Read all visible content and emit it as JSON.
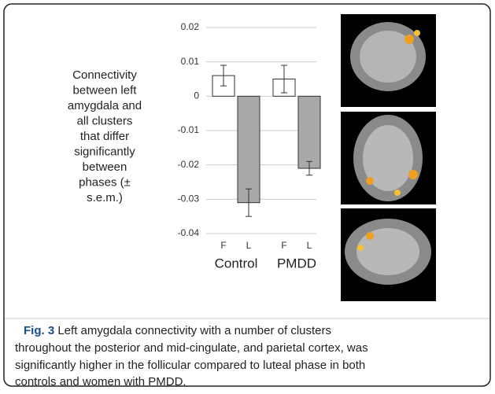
{
  "chart_data": {
    "type": "bar",
    "ylabel": [
      "Connectivity",
      "between left",
      "amygdala and",
      "all clusters",
      "that differ",
      "significantly",
      "between",
      "phases (±",
      "s.e.m.)"
    ],
    "categories": [
      "F",
      "L",
      "F",
      "L"
    ],
    "groups": [
      "Control",
      "PMDD"
    ],
    "values": [
      0.006,
      -0.031,
      0.005,
      -0.021
    ],
    "errors": [
      0.003,
      0.004,
      0.004,
      0.002
    ],
    "colors": [
      "#ffffff",
      "#a9a9a9",
      "#ffffff",
      "#a9a9a9"
    ],
    "ylim": [
      -0.04,
      0.02
    ],
    "yticks": [
      0.02,
      0.01,
      0,
      -0.01,
      -0.02,
      -0.03,
      -0.04
    ],
    "grid": true
  },
  "caption": {
    "label": "Fig. 3",
    "lines": [
      "Left amygdala connectivity with a number of clusters",
      "throughout the posterior and mid-cingulate, and parietal cortex, was",
      "significantly higher in the follicular compared to luteal phase in both",
      "controls and women with PMDD."
    ]
  }
}
